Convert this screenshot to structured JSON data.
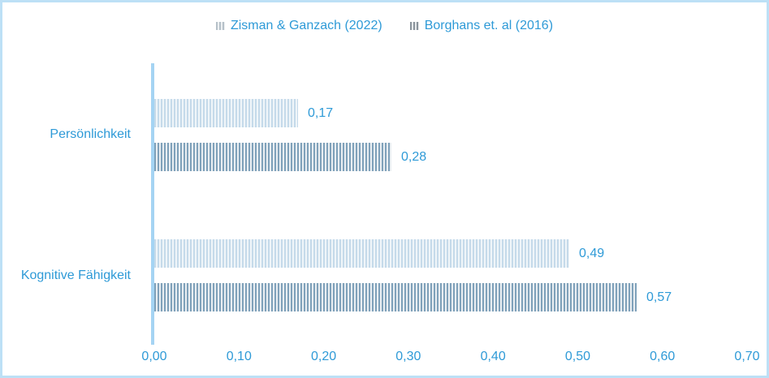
{
  "colors": {
    "label_text": "#2e9ad7",
    "axis_line": "#a5d4f3",
    "frame_border": "#bde0f6",
    "series1_stripe": "#c5daea",
    "series1_stripe_bg": "#eff5f9",
    "series2_stripe": "#7fa1ba",
    "series2_stripe_bg": "#e9eef2"
  },
  "chart_data": {
    "type": "bar",
    "orientation": "horizontal",
    "title": "",
    "xlabel": "",
    "ylabel": "",
    "categories": [
      "Persönlichkeit",
      "Kognitive Fähigkeit"
    ],
    "series": [
      {
        "name": "Zisman & Ganzach (2022)",
        "values": [
          0.17,
          0.49
        ],
        "value_labels": [
          "0,17",
          "0,49"
        ]
      },
      {
        "name": "Borghans et. al (2016)",
        "values": [
          0.28,
          0.57
        ],
        "value_labels": [
          "0,28",
          "0,57"
        ]
      }
    ],
    "xlim": [
      0,
      0.7
    ],
    "x_ticks": [
      0.0,
      0.1,
      0.2,
      0.3,
      0.4,
      0.5,
      0.6,
      0.7
    ],
    "x_tick_labels": [
      "0,00",
      "0,10",
      "0,20",
      "0,30",
      "0,40",
      "0,50",
      "0,60",
      "0,70"
    ],
    "legend_position": "top",
    "grid": false,
    "pattern_fill": "vertical-stripes"
  }
}
